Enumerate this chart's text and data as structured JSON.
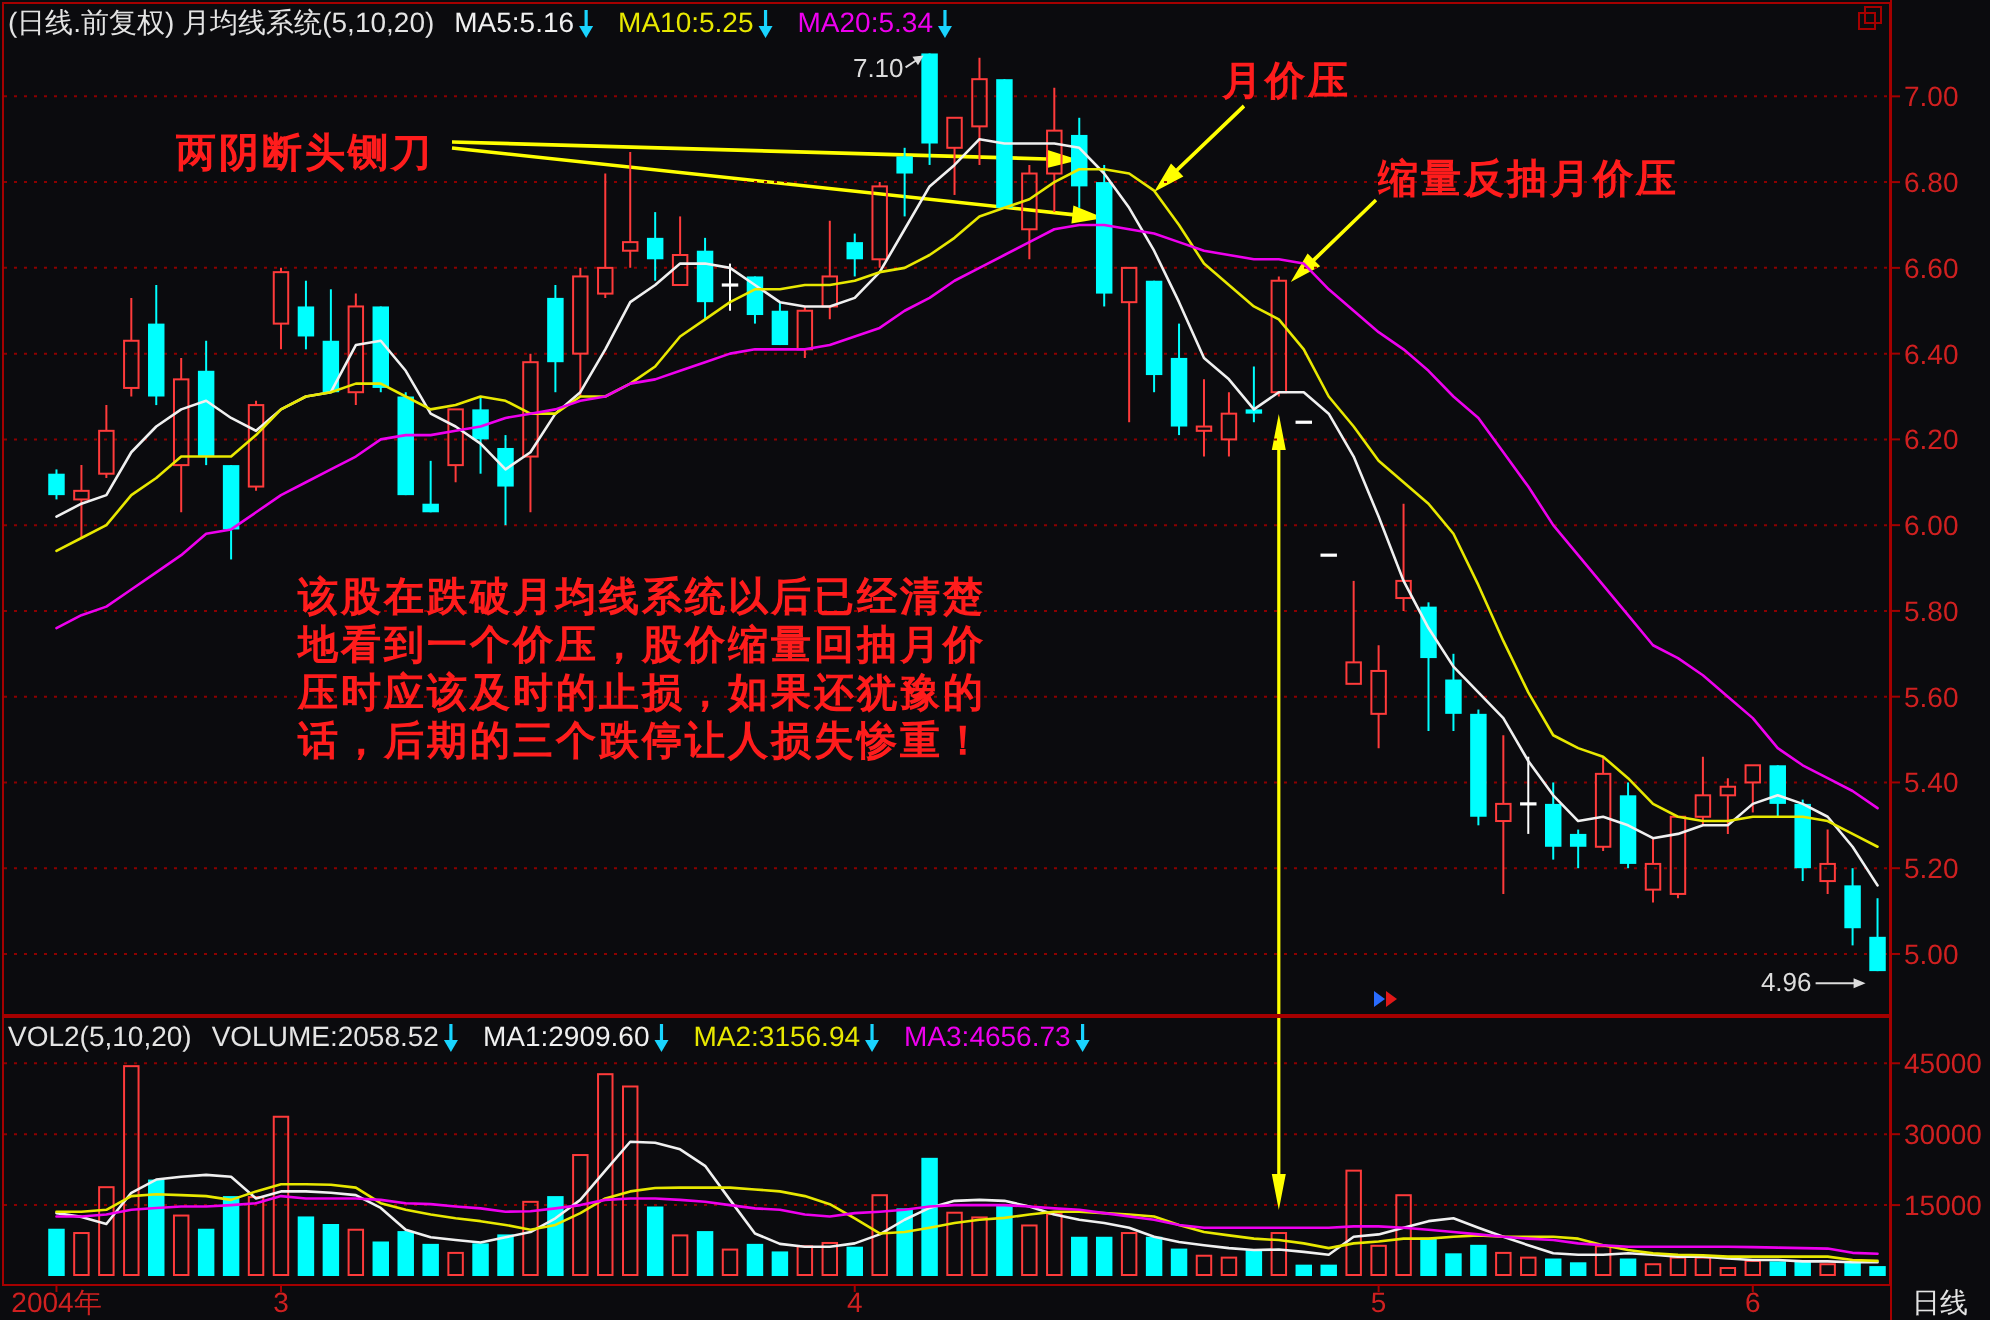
{
  "chart_data": [
    {
      "type": "candlestick",
      "title": "(日线.前复权) 月均线系统(5,10,20)",
      "categories": [
        null,
        null,
        null,
        null,
        null,
        null,
        null,
        null,
        null,
        null,
        null,
        null,
        null,
        null,
        null,
        null,
        null,
        null,
        null,
        null,
        null,
        null,
        null,
        null,
        null,
        null,
        null,
        null,
        null,
        null,
        null,
        null,
        null,
        null,
        null,
        null,
        null,
        null,
        null,
        null,
        null,
        null,
        null,
        null,
        null,
        null,
        null,
        null,
        null,
        null,
        null,
        null,
        null,
        null,
        null,
        null,
        null,
        null,
        null,
        null,
        null,
        null,
        null,
        null,
        null,
        null,
        null,
        null,
        null,
        null,
        null,
        null,
        null,
        null
      ],
      "ohlc": [
        [
          6.12,
          6.13,
          6.06,
          6.07
        ],
        [
          6.06,
          6.14,
          5.97,
          6.08
        ],
        [
          6.12,
          6.28,
          6.11,
          6.22
        ],
        [
          6.32,
          6.53,
          6.3,
          6.43
        ],
        [
          6.47,
          6.56,
          6.28,
          6.3
        ],
        [
          6.14,
          6.39,
          6.03,
          6.34
        ],
        [
          6.36,
          6.43,
          6.14,
          6.16
        ],
        [
          6.14,
          6.14,
          5.92,
          5.99
        ],
        [
          6.09,
          6.29,
          6.08,
          6.28
        ],
        [
          6.47,
          6.6,
          6.41,
          6.59
        ],
        [
          6.51,
          6.57,
          6.41,
          6.44
        ],
        [
          6.43,
          6.55,
          6.31,
          6.31
        ],
        [
          6.31,
          6.54,
          6.28,
          6.51
        ],
        [
          6.51,
          6.51,
          6.31,
          6.32
        ],
        [
          6.3,
          6.31,
          6.07,
          6.07
        ],
        [
          6.05,
          6.15,
          6.03,
          6.03
        ],
        [
          6.14,
          6.27,
          6.1,
          6.27
        ],
        [
          6.27,
          6.3,
          6.12,
          6.2
        ],
        [
          6.18,
          6.21,
          6.0,
          6.09
        ],
        [
          6.16,
          6.4,
          6.03,
          6.38
        ],
        [
          6.53,
          6.56,
          6.31,
          6.38
        ],
        [
          6.4,
          6.6,
          6.3,
          6.58
        ],
        [
          6.54,
          6.82,
          6.53,
          6.6
        ],
        [
          6.64,
          6.87,
          6.6,
          6.66
        ],
        [
          6.67,
          6.73,
          6.57,
          6.62
        ],
        [
          6.56,
          6.72,
          6.56,
          6.63
        ],
        [
          6.64,
          6.67,
          6.48,
          6.52
        ],
        [
          6.56,
          6.61,
          6.5,
          6.56
        ],
        [
          6.58,
          6.58,
          6.47,
          6.49
        ],
        [
          6.5,
          6.52,
          6.42,
          6.42
        ],
        [
          6.41,
          6.51,
          6.39,
          6.5
        ],
        [
          6.51,
          6.71,
          6.48,
          6.58
        ],
        [
          6.66,
          6.68,
          6.58,
          6.62
        ],
        [
          6.62,
          6.8,
          6.6,
          6.79
        ],
        [
          6.86,
          6.88,
          6.72,
          6.82
        ],
        [
          7.1,
          7.1,
          6.84,
          6.89
        ],
        [
          6.88,
          6.95,
          6.77,
          6.95
        ],
        [
          6.93,
          7.09,
          6.84,
          7.04
        ],
        [
          7.04,
          7.04,
          6.74,
          6.74
        ],
        [
          6.69,
          6.84,
          6.62,
          6.82
        ],
        [
          6.82,
          7.02,
          6.73,
          6.92
        ],
        [
          6.91,
          6.95,
          6.74,
          6.79
        ],
        [
          6.8,
          6.84,
          6.51,
          6.54
        ],
        [
          6.52,
          6.6,
          6.24,
          6.6
        ],
        [
          6.57,
          6.57,
          6.31,
          6.35
        ],
        [
          6.39,
          6.47,
          6.21,
          6.23
        ],
        [
          6.22,
          6.34,
          6.16,
          6.23
        ],
        [
          6.2,
          6.31,
          6.16,
          6.26
        ],
        [
          6.27,
          6.37,
          6.24,
          6.26
        ],
        [
          6.31,
          6.58,
          6.3,
          6.57
        ],
        [
          6.24,
          6.24,
          6.24,
          6.24
        ],
        [
          5.93,
          5.93,
          5.93,
          5.93
        ],
        [
          5.63,
          5.87,
          5.63,
          5.68
        ],
        [
          5.56,
          5.72,
          5.48,
          5.66
        ],
        [
          5.83,
          6.05,
          5.8,
          5.87
        ],
        [
          5.81,
          5.82,
          5.52,
          5.69
        ],
        [
          5.64,
          5.7,
          5.52,
          5.56
        ],
        [
          5.56,
          5.57,
          5.3,
          5.32
        ],
        [
          5.31,
          5.51,
          5.14,
          5.35
        ],
        [
          5.35,
          5.46,
          5.28,
          5.35
        ],
        [
          5.35,
          5.4,
          5.22,
          5.25
        ],
        [
          5.28,
          5.29,
          5.2,
          5.25
        ],
        [
          5.25,
          5.46,
          5.24,
          5.42
        ],
        [
          5.37,
          5.4,
          5.2,
          5.21
        ],
        [
          5.15,
          5.27,
          5.12,
          5.21
        ],
        [
          5.14,
          5.32,
          5.13,
          5.32
        ],
        [
          5.32,
          5.46,
          5.3,
          5.37
        ],
        [
          5.37,
          5.41,
          5.28,
          5.39
        ],
        [
          5.4,
          5.44,
          5.33,
          5.44
        ],
        [
          5.44,
          5.44,
          5.32,
          5.35
        ],
        [
          5.35,
          5.36,
          5.17,
          5.2
        ],
        [
          5.17,
          5.29,
          5.14,
          5.21
        ],
        [
          5.16,
          5.2,
          5.02,
          5.06
        ],
        [
          5.04,
          5.13,
          4.96,
          4.96
        ]
      ],
      "colors": [
        "#00ffff",
        "#ff3b3b",
        "#ff3b3b",
        "#ff3b3b",
        "#00ffff",
        "#ff3b3b",
        "#00ffff",
        "#00ffff",
        "#ff3b3b",
        "#ff3b3b",
        "#00ffff",
        "#00ffff",
        "#ff3b3b",
        "#00ffff",
        "#00ffff",
        "#00ffff",
        "#ff3b3b",
        "#00ffff",
        "#00ffff",
        "#ff3b3b",
        "#00ffff",
        "#ff3b3b",
        "#ff3b3b",
        "#ff3b3b",
        "#00ffff",
        "#ff3b3b",
        "#00ffff",
        "#ffffff",
        "#00ffff",
        "#00ffff",
        "#ff3b3b",
        "#ff3b3b",
        "#00ffff",
        "#ff3b3b",
        "#00ffff",
        "#00ffff",
        "#ff3b3b",
        "#ff3b3b",
        "#00ffff",
        "#ff3b3b",
        "#ff3b3b",
        "#00ffff",
        "#00ffff",
        "#ff3b3b",
        "#00ffff",
        "#00ffff",
        "#ff3b3b",
        "#ff3b3b",
        "#00ffff",
        "#ff3b3b",
        "#ffffff",
        "#ffffff",
        "#ff3b3b",
        "#ff3b3b",
        "#ff3b3b",
        "#00ffff",
        "#00ffff",
        "#00ffff",
        "#ff3b3b",
        "#ffffff",
        "#00ffff",
        "#00ffff",
        "#ff3b3b",
        "#00ffff",
        "#ff3b3b",
        "#ff3b3b",
        "#ff3b3b",
        "#ff3b3b",
        "#ff3b3b",
        "#00ffff",
        "#00ffff",
        "#ff3b3b",
        "#00ffff",
        "#00ffff"
      ],
      "series": [
        {
          "name": "MA5:5.16",
          "type": "line",
          "color": "#f0f0f0",
          "values": [
            6.02,
            6.05,
            6.07,
            6.17,
            6.23,
            6.27,
            6.29,
            6.25,
            6.22,
            6.27,
            6.3,
            6.31,
            6.42,
            6.43,
            6.36,
            6.26,
            6.23,
            6.19,
            6.13,
            6.17,
            6.26,
            6.31,
            6.41,
            6.52,
            6.56,
            6.61,
            6.61,
            6.6,
            6.56,
            6.52,
            6.51,
            6.51,
            6.53,
            6.59,
            6.69,
            6.79,
            6.84,
            6.9,
            6.89,
            6.89,
            6.89,
            6.88,
            6.82,
            6.74,
            6.64,
            6.52,
            6.39,
            6.34,
            6.27,
            6.31,
            6.31,
            6.26,
            6.16,
            6.02,
            5.87,
            5.76,
            5.67,
            5.61,
            5.55,
            5.45,
            5.37,
            5.31,
            5.32,
            5.3,
            5.27,
            5.28,
            5.3,
            5.3,
            5.35,
            5.37,
            5.35,
            5.32,
            5.25,
            5.16
          ]
        },
        {
          "name": "MA10:5.25",
          "type": "line",
          "color": "#e8e800",
          "values": [
            5.94,
            5.97,
            6.0,
            6.07,
            6.11,
            6.16,
            6.16,
            6.16,
            6.21,
            6.27,
            6.3,
            6.31,
            6.33,
            6.33,
            6.3,
            6.27,
            6.28,
            6.3,
            6.29,
            6.26,
            6.26,
            6.3,
            6.3,
            6.33,
            6.37,
            6.44,
            6.48,
            6.52,
            6.55,
            6.55,
            6.56,
            6.56,
            6.57,
            6.59,
            6.6,
            6.63,
            6.67,
            6.72,
            6.74,
            6.76,
            6.8,
            6.83,
            6.83,
            6.82,
            6.78,
            6.7,
            6.61,
            6.56,
            6.51,
            6.48,
            6.41,
            6.3,
            6.23,
            6.15,
            6.1,
            6.05,
            5.98,
            5.86,
            5.73,
            5.61,
            5.51,
            5.48,
            5.46,
            5.41,
            5.35,
            5.32,
            5.31,
            5.31,
            5.32,
            5.32,
            5.32,
            5.31,
            5.28,
            5.25
          ]
        },
        {
          "name": "MA20:5.34",
          "type": "line",
          "color": "#ee00ee",
          "values": [
            5.76,
            5.79,
            5.81,
            5.85,
            5.89,
            5.93,
            5.98,
            5.99,
            6.03,
            6.07,
            6.1,
            6.13,
            6.16,
            6.2,
            6.21,
            6.21,
            6.22,
            6.23,
            6.25,
            6.26,
            6.27,
            6.29,
            6.3,
            6.33,
            6.34,
            6.36,
            6.38,
            6.4,
            6.41,
            6.41,
            6.41,
            6.42,
            6.44,
            6.46,
            6.5,
            6.53,
            6.57,
            6.6,
            6.63,
            6.66,
            6.69,
            6.7,
            6.7,
            6.69,
            6.68,
            6.66,
            6.64,
            6.63,
            6.62,
            6.62,
            6.61,
            6.55,
            6.5,
            6.45,
            6.41,
            6.36,
            6.3,
            6.25,
            6.17,
            6.09,
            6.0,
            5.93,
            5.86,
            5.79,
            5.72,
            5.69,
            5.65,
            5.6,
            5.55,
            5.48,
            5.44,
            5.41,
            5.38,
            5.34
          ]
        }
      ],
      "ylim": [
        4.86,
        7.22
      ],
      "yticks": [
        {
          "value": 5,
          "label": "5.00"
        },
        {
          "value": 5.2,
          "label": "5.20"
        },
        {
          "value": 5.4,
          "label": "5.40"
        },
        {
          "value": 5.6,
          "label": "5.60"
        },
        {
          "value": 5.8,
          "label": "5.80"
        },
        {
          "value": 6,
          "label": "6.00"
        },
        {
          "value": 6.2,
          "label": "6.20"
        },
        {
          "value": 6.4,
          "label": "6.40"
        },
        {
          "value": 6.6,
          "label": "6.60"
        },
        {
          "value": 6.8,
          "label": "6.80"
        },
        {
          "value": 7,
          "label": "7.00"
        }
      ],
      "grid": "y",
      "legend": "top left",
      "annotations": [
        "两阴断头铡刀",
        "月价压",
        "缩量反抽月价压",
        "该股在跌破月均线系统以后已经清楚地看到一个价压，股价缩量回抽月价压时应该及时的止损，如果还犹豫的话，后期的三个跌停让人损失惨重！",
        "7.10",
        "4.96"
      ]
    },
    {
      "type": "bar",
      "title": "VOL2(5,10,20)",
      "xlabel": "日线",
      "categories": [
        "2004年",
        null,
        null,
        null,
        null,
        null,
        null,
        null,
        null,
        "3",
        null,
        null,
        null,
        null,
        null,
        null,
        null,
        null,
        null,
        null,
        null,
        null,
        null,
        null,
        null,
        null,
        null,
        null,
        null,
        null,
        null,
        null,
        "4",
        null,
        null,
        null,
        null,
        null,
        null,
        null,
        null,
        null,
        null,
        null,
        null,
        null,
        null,
        null,
        null,
        null,
        null,
        null,
        null,
        "5",
        null,
        null,
        null,
        null,
        null,
        null,
        null,
        null,
        null,
        null,
        null,
        null,
        null,
        null,
        "6",
        null,
        null,
        null,
        null,
        null
      ],
      "series": [
        {
          "type": "bar",
          "colors": [
            "#00ffff",
            "#ff3b3b",
            "#ff3b3b",
            "#ff3b3b",
            "#00ffff",
            "#ff3b3b",
            "#00ffff",
            "#00ffff",
            "#ff3b3b",
            "#ff3b3b",
            "#00ffff",
            "#00ffff",
            "#ff3b3b",
            "#00ffff",
            "#00ffff",
            "#00ffff",
            "#ff3b3b",
            "#00ffff",
            "#00ffff",
            "#ff3b3b",
            "#00ffff",
            "#ff3b3b",
            "#ff3b3b",
            "#ff3b3b",
            "#00ffff",
            "#ff3b3b",
            "#00ffff",
            "#ff3b3b",
            "#00ffff",
            "#00ffff",
            "#ff3b3b",
            "#ff3b3b",
            "#00ffff",
            "#ff3b3b",
            "#00ffff",
            "#00ffff",
            "#ff3b3b",
            "#ff3b3b",
            "#00ffff",
            "#ff3b3b",
            "#ff3b3b",
            "#00ffff",
            "#00ffff",
            "#ff3b3b",
            "#00ffff",
            "#00ffff",
            "#ff3b3b",
            "#ff3b3b",
            "#00ffff",
            "#ff3b3b",
            "#00ffff",
            "#00ffff",
            "#ff3b3b",
            "#ff3b3b",
            "#ff3b3b",
            "#00ffff",
            "#00ffff",
            "#00ffff",
            "#ff3b3b",
            "#ff3b3b",
            "#00ffff",
            "#00ffff",
            "#ff3b3b",
            "#00ffff",
            "#ff3b3b",
            "#ff3b3b",
            "#ff3b3b",
            "#ff3b3b",
            "#ff3b3b",
            "#00ffff",
            "#00ffff",
            "#ff3b3b",
            "#00ffff",
            "#00ffff"
          ],
          "values": [
            10000,
            9300,
            19000,
            44600,
            20400,
            13000,
            10000,
            16900,
            16900,
            33900,
            12600,
            11000,
            10000,
            7300,
            9500,
            6800,
            5100,
            6900,
            8800,
            15900,
            16900,
            25800,
            42900,
            40300,
            14700,
            8800,
            9500,
            5800,
            6800,
            5200,
            6500,
            7200,
            6200,
            17300,
            14300,
            25000,
            13600,
            12600,
            15000,
            10900,
            13300,
            8300,
            8300,
            9300,
            8300,
            5800,
            4500,
            4100,
            5500,
            9300,
            2400,
            2400,
            22500,
            6600,
            17300,
            8100,
            4800,
            6600,
            5100,
            4100,
            3700,
            2900,
            6500,
            3700,
            2700,
            4100,
            4100,
            1900,
            3400,
            3100,
            3100,
            2700,
            2900,
            2100
          ]
        },
        {
          "name": "MA1:2909.60",
          "type": "line",
          "color": "#f0f0f0",
          "values": [
            13300,
            12500,
            11000,
            17600,
            20400,
            21000,
            21400,
            21000,
            16400,
            17900,
            17900,
            17600,
            17100,
            14400,
            9800,
            8200,
            7600,
            7100,
            8200,
            9300,
            12200,
            16100,
            22300,
            28400,
            28200,
            26800,
            23300,
            16100,
            9000,
            6800,
            6200,
            6200,
            6900,
            8800,
            11900,
            14400,
            15900,
            16100,
            15900,
            14700,
            13000,
            11900,
            11200,
            10200,
            8300,
            7200,
            6500,
            5900,
            5500,
            5600,
            5100,
            4500,
            8300,
            8800,
            10200,
            11600,
            12200,
            10200,
            8300,
            6500,
            4800,
            4500,
            4500,
            4800,
            4500,
            4100,
            4100,
            3700,
            3400,
            3400,
            3100,
            3100,
            2900,
            2900
          ]
        },
        {
          "name": "MA2:3156.94",
          "type": "line",
          "color": "#e8e800",
          "values": [
            13600,
            13600,
            14000,
            16900,
            17300,
            17100,
            16900,
            16100,
            17900,
            19400,
            19400,
            19300,
            18700,
            15400,
            14000,
            13000,
            12200,
            11600,
            10800,
            9800,
            10800,
            13300,
            16400,
            17900,
            18600,
            18700,
            18700,
            18700,
            18300,
            17900,
            16900,
            15200,
            12200,
            9000,
            9300,
            10200,
            11200,
            11900,
            12300,
            13000,
            13600,
            13600,
            13300,
            13000,
            12600,
            10800,
            9300,
            8600,
            7900,
            7600,
            6900,
            5900,
            6900,
            7300,
            7900,
            7900,
            8300,
            8600,
            8300,
            8300,
            8300,
            7900,
            6500,
            5500,
            4800,
            4500,
            4400,
            4100,
            4100,
            4100,
            4100,
            4100,
            3400,
            3200
          ]
        },
        {
          "name": "MA3:4656.73",
          "type": "line",
          "color": "#ee00ee",
          "values": [
            12600,
            12600,
            13000,
            14000,
            14400,
            14700,
            14700,
            15000,
            15400,
            16900,
            16400,
            16400,
            16400,
            16100,
            15400,
            15200,
            14700,
            14300,
            13600,
            13700,
            14300,
            15000,
            16100,
            16400,
            16400,
            16100,
            15700,
            15000,
            14300,
            14000,
            13000,
            12600,
            13300,
            13600,
            14000,
            14700,
            15000,
            15000,
            15000,
            14700,
            14300,
            14000,
            13300,
            12600,
            11900,
            10800,
            10200,
            10200,
            10200,
            10200,
            10200,
            10200,
            10500,
            10500,
            10200,
            9800,
            9300,
            8800,
            8300,
            7900,
            7600,
            6900,
            6500,
            6200,
            6200,
            6200,
            6200,
            6200,
            6100,
            6000,
            5900,
            5800,
            4900,
            4700
          ]
        }
      ],
      "ylim": [
        0,
        55000
      ],
      "yticks": [
        15000,
        30000,
        45000
      ],
      "grid": "y",
      "legend": "top left",
      "annotations": [
        "VOLUME:2058.52"
      ]
    }
  ]
}
